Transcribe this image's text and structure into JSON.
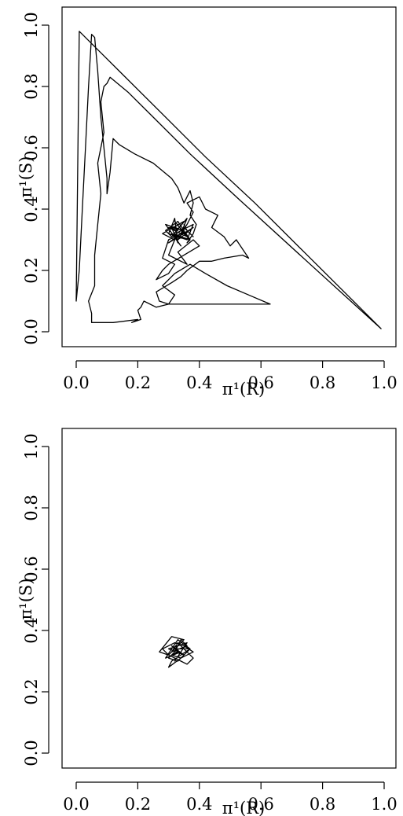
{
  "chart_data": [
    {
      "type": "line",
      "title": "",
      "xlabel": "π¹(R)",
      "ylabel": "π¹(S)",
      "xlim": [
        0,
        1
      ],
      "ylim": [
        0,
        1
      ],
      "xticks": [
        "0.0",
        "0.2",
        "0.4",
        "0.6",
        "0.8",
        "1.0"
      ],
      "yticks": [
        "0.0",
        "0.2",
        "0.4",
        "0.6",
        "0.8",
        "1.0"
      ],
      "grid": false,
      "series": [
        {
          "x": [
            0.33,
            0.3,
            0.36,
            0.32,
            0.37,
            0.31,
            0.34,
            0.29,
            0.35,
            0.33,
            0.38,
            0.3,
            0.34,
            0.36,
            0.31,
            0.29,
            0.33,
            0.37,
            0.35,
            0.31,
            0.33,
            0.32,
            0.3,
            0.36,
            0.38,
            0.34,
            0.31,
            0.35,
            0.28,
            0.32,
            0.3,
            0.36,
            0.33,
            0.38,
            0.4,
            0.3,
            0.28,
            0.26,
            0.3,
            0.32,
            0.28,
            0.3,
            0.34,
            0.36,
            0.38,
            0.36,
            0.4,
            0.42,
            0.46,
            0.44,
            0.48,
            0.5,
            0.52,
            0.54,
            0.56,
            0.54,
            0.48,
            0.44,
            0.4,
            0.36,
            0.34,
            0.31,
            0.26,
            0.27,
            0.3,
            0.32,
            0.28,
            0.32,
            0.37,
            0.42,
            0.49,
            0.56,
            0.63,
            0.3,
            0.26,
            0.22,
            0.21,
            0.2,
            0.21,
            0.18,
            0.2,
            0.12,
            0.05,
            0.05,
            0.04,
            0.06,
            0.06,
            0.07,
            0.08,
            0.07,
            0.09,
            0.08,
            0.09,
            0.1,
            0.11,
            0.17,
            0.25,
            0.37,
            0.52,
            0.76,
            0.99,
            0.88,
            0.74,
            0.58,
            0.42,
            0.28,
            0.14,
            0.06,
            0.02,
            0.01,
            0.0,
            0.01,
            0.02,
            0.03,
            0.04,
            0.05,
            0.06,
            0.07,
            0.08,
            0.09,
            0.1,
            0.1,
            0.11,
            0.12,
            0.14,
            0.19,
            0.25,
            0.31,
            0.33,
            0.35,
            0.37,
            0.38,
            0.37,
            0.39,
            0.38,
            0.36,
            0.37,
            0.34,
            0.35,
            0.38,
            0.36,
            0.35
          ],
          "y": [
            0.33,
            0.34,
            0.31,
            0.36,
            0.3,
            0.32,
            0.28,
            0.35,
            0.33,
            0.3,
            0.34,
            0.29,
            0.32,
            0.37,
            0.31,
            0.33,
            0.36,
            0.3,
            0.33,
            0.34,
            0.29,
            0.37,
            0.32,
            0.3,
            0.35,
            0.33,
            0.31,
            0.36,
            0.32,
            0.3,
            0.25,
            0.22,
            0.26,
            0.3,
            0.28,
            0.22,
            0.2,
            0.17,
            0.19,
            0.22,
            0.24,
            0.3,
            0.32,
            0.35,
            0.39,
            0.42,
            0.44,
            0.4,
            0.38,
            0.34,
            0.31,
            0.28,
            0.3,
            0.27,
            0.24,
            0.25,
            0.24,
            0.23,
            0.23,
            0.2,
            0.18,
            0.16,
            0.13,
            0.1,
            0.09,
            0.12,
            0.15,
            0.19,
            0.22,
            0.19,
            0.15,
            0.12,
            0.09,
            0.09,
            0.08,
            0.1,
            0.08,
            0.07,
            0.04,
            0.03,
            0.04,
            0.03,
            0.03,
            0.06,
            0.1,
            0.15,
            0.25,
            0.35,
            0.45,
            0.55,
            0.65,
            0.75,
            0.8,
            0.81,
            0.83,
            0.78,
            0.7,
            0.58,
            0.44,
            0.22,
            0.01,
            0.12,
            0.26,
            0.42,
            0.57,
            0.71,
            0.85,
            0.93,
            0.97,
            0.98,
            0.1,
            0.2,
            0.4,
            0.6,
            0.8,
            0.97,
            0.96,
            0.85,
            0.7,
            0.6,
            0.5,
            0.45,
            0.52,
            0.63,
            0.61,
            0.58,
            0.55,
            0.5,
            0.47,
            0.42,
            0.46,
            0.42,
            0.38,
            0.35,
            0.32,
            0.29,
            0.3,
            0.33,
            0.34,
            0.31,
            0.33,
            0.35
          ]
        }
      ]
    },
    {
      "type": "line",
      "title": "",
      "xlabel": "π¹(R)",
      "ylabel": "π¹(S)",
      "xlim": [
        0,
        1
      ],
      "ylim": [
        0,
        1
      ],
      "xticks": [
        "0.0",
        "0.2",
        "0.4",
        "0.6",
        "0.8",
        "1.0"
      ],
      "yticks": [
        "0.0",
        "0.2",
        "0.4",
        "0.6",
        "0.8",
        "1.0"
      ],
      "grid": false,
      "series": [
        {
          "x": [
            0.33,
            0.31,
            0.35,
            0.3,
            0.36,
            0.32,
            0.34,
            0.29,
            0.33,
            0.37,
            0.31,
            0.3,
            0.34,
            0.38,
            0.35,
            0.32,
            0.28,
            0.3,
            0.27,
            0.31,
            0.35,
            0.33,
            0.3,
            0.34,
            0.36,
            0.38,
            0.35,
            0.33,
            0.31,
            0.36,
            0.34,
            0.32,
            0.3,
            0.33,
            0.35,
            0.32,
            0.37,
            0.34,
            0.31,
            0.33
          ],
          "y": [
            0.33,
            0.35,
            0.32,
            0.34,
            0.36,
            0.3,
            0.33,
            0.31,
            0.37,
            0.34,
            0.3,
            0.28,
            0.31,
            0.33,
            0.35,
            0.36,
            0.34,
            0.32,
            0.33,
            0.38,
            0.37,
            0.35,
            0.32,
            0.3,
            0.29,
            0.31,
            0.34,
            0.36,
            0.33,
            0.35,
            0.37,
            0.33,
            0.31,
            0.3,
            0.32,
            0.34,
            0.34,
            0.31,
            0.32,
            0.33
          ]
        }
      ]
    }
  ]
}
